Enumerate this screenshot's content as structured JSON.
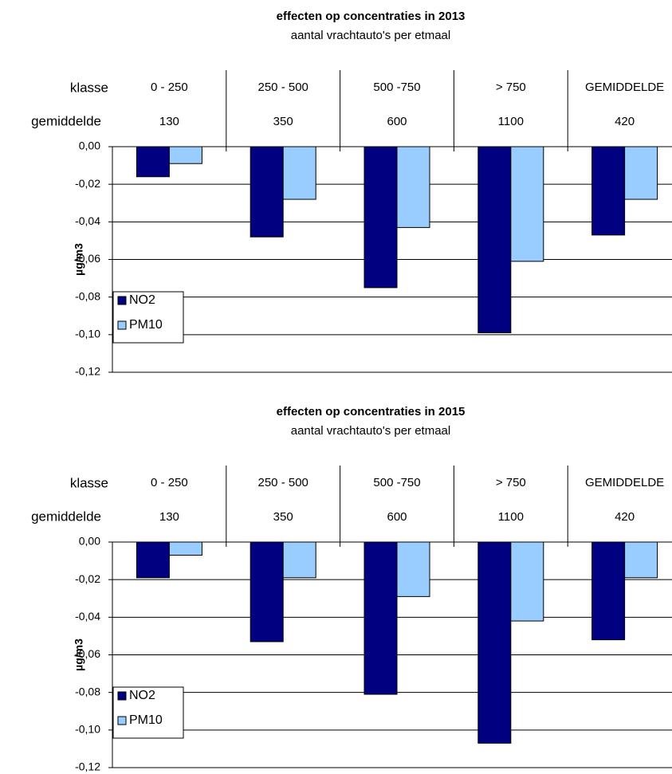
{
  "chart_data": [
    {
      "type": "bar",
      "title": "effecten op concentraties in 2013",
      "subtitle": "aantal vrachtauto's per etmaal",
      "y_label": "µg/m3",
      "row_labels": [
        "klasse",
        "gemiddelde"
      ],
      "categories": [
        "0 - 250",
        "250 - 500",
        "500  -750",
        "> 750",
        "GEMIDDELDE"
      ],
      "category_means": [
        130,
        350,
        600,
        1100,
        420
      ],
      "series": [
        {
          "name": "NO2",
          "color": "#000080",
          "values": [
            -0.016,
            -0.048,
            -0.075,
            -0.099,
            -0.047
          ]
        },
        {
          "name": "PM10",
          "color": "#99ccff",
          "values": [
            -0.009,
            -0.028,
            -0.043,
            -0.061,
            -0.028
          ]
        }
      ],
      "ylim": [
        -0.12,
        0
      ],
      "yticks": [
        {
          "value": 0,
          "label": "0,00"
        },
        {
          "value": -0.02,
          "label": "-0,02"
        },
        {
          "value": -0.04,
          "label": "-0,04"
        },
        {
          "value": -0.06,
          "label": "-0,06"
        },
        {
          "value": -0.08,
          "label": "-0,08"
        },
        {
          "value": -0.1,
          "label": "-0,10"
        },
        {
          "value": -0.12,
          "label": "-0,12"
        }
      ],
      "grid": true,
      "legend": "lower left"
    },
    {
      "type": "bar",
      "title": "effecten op concentraties in 2015",
      "subtitle": "aantal vrachtauto's per etmaal",
      "y_label": "µg/m3",
      "row_labels": [
        "klasse",
        "gemiddelde"
      ],
      "categories": [
        "0 - 250",
        "250 - 500",
        "500  -750",
        "> 750",
        "GEMIDDELDE"
      ],
      "category_means": [
        130,
        350,
        600,
        1100,
        420
      ],
      "series": [
        {
          "name": "NO2",
          "color": "#000080",
          "values": [
            -0.019,
            -0.053,
            -0.081,
            -0.107,
            -0.052
          ]
        },
        {
          "name": "PM10",
          "color": "#99ccff",
          "values": [
            -0.007,
            -0.019,
            -0.029,
            -0.042,
            -0.019
          ]
        }
      ],
      "ylim": [
        -0.12,
        0
      ],
      "yticks": [
        {
          "value": 0,
          "label": "0,00"
        },
        {
          "value": -0.02,
          "label": "-0,02"
        },
        {
          "value": -0.04,
          "label": "-0,04"
        },
        {
          "value": -0.06,
          "label": "-0,06"
        },
        {
          "value": -0.08,
          "label": "-0,08"
        },
        {
          "value": -0.1,
          "label": "-0,10"
        },
        {
          "value": -0.12,
          "label": "-0,12"
        }
      ],
      "grid": true,
      "legend": "lower left"
    }
  ]
}
